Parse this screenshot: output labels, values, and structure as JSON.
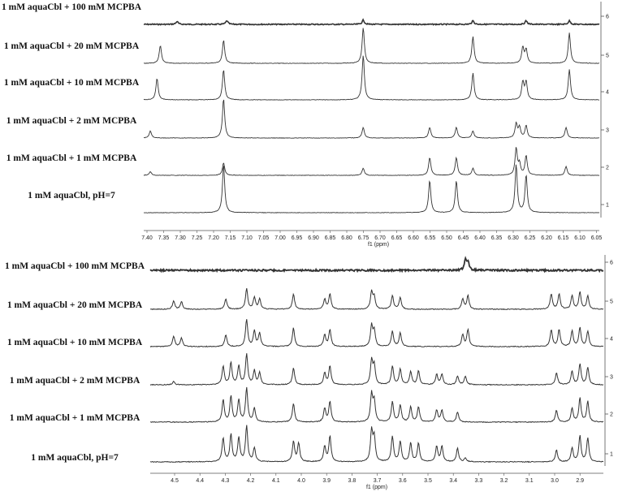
{
  "chart_data": [
    {
      "type": "line",
      "title": "",
      "xlabel": "f1 (ppm)",
      "ylabel": "",
      "xlim": [
        7.4,
        6.03
      ],
      "x_reversed": true,
      "x_ticks": [
        "7.40",
        "7.35",
        "7.30",
        "7.25",
        "7.20",
        "7.15",
        "7.10",
        "7.05",
        "7.00",
        "6.95",
        "6.90",
        "6.85",
        "6.80",
        "6.75",
        "6.70",
        "6.65",
        "6.60",
        "6.55",
        "6.50",
        "6.45",
        "6.40",
        "6.35",
        "6.30",
        "6.25",
        "6.20",
        "6.15",
        "6.10",
        "6.05"
      ],
      "series": [
        {
          "name": "1 mM aquaCbl + 100 mM MCPBA",
          "index": "6",
          "peaks": [
            [
              7.3,
              0.08
            ],
            [
              7.15,
              0.1
            ],
            [
              6.74,
              0.12
            ],
            [
              6.41,
              0.1
            ],
            [
              6.25,
              0.1
            ],
            [
              6.12,
              0.1
            ]
          ]
        },
        {
          "name": "1 mM aquaCbl + 20 mM MCPBA",
          "index": "5",
          "peaks": [
            [
              7.35,
              0.5
            ],
            [
              7.16,
              0.65
            ],
            [
              6.74,
              1.0
            ],
            [
              6.41,
              0.75
            ],
            [
              6.26,
              0.45
            ],
            [
              6.25,
              0.38
            ],
            [
              6.12,
              0.85
            ]
          ]
        },
        {
          "name": "1 mM aquaCbl + 10 mM MCPBA",
          "index": "4",
          "peaks": [
            [
              7.36,
              0.6
            ],
            [
              7.16,
              0.85
            ],
            [
              6.74,
              1.25
            ],
            [
              6.41,
              0.75
            ],
            [
              6.26,
              0.5
            ],
            [
              6.25,
              0.5
            ],
            [
              6.12,
              0.85
            ]
          ]
        },
        {
          "name": "1 mM aquaCbl + 2 mM MCPBA",
          "index": "3",
          "peaks": [
            [
              7.38,
              0.2
            ],
            [
              7.16,
              1.1
            ],
            [
              6.74,
              0.3
            ],
            [
              6.54,
              0.3
            ],
            [
              6.46,
              0.3
            ],
            [
              6.41,
              0.2
            ],
            [
              6.28,
              0.4
            ],
            [
              6.27,
              0.3
            ],
            [
              6.25,
              0.35
            ],
            [
              6.13,
              0.3
            ]
          ]
        },
        {
          "name": "1 mM aquaCbl + 1 mM MCPBA",
          "index": "2",
          "peaks": [
            [
              7.38,
              0.1
            ],
            [
              7.16,
              0.35
            ],
            [
              6.74,
              0.2
            ],
            [
              6.54,
              0.5
            ],
            [
              6.46,
              0.5
            ],
            [
              6.41,
              0.2
            ],
            [
              6.28,
              0.75
            ],
            [
              6.27,
              0.3
            ],
            [
              6.25,
              0.55
            ],
            [
              6.13,
              0.25
            ]
          ]
        },
        {
          "name": "1 mM aquaCbl, pH=7",
          "index": "1",
          "peaks": [
            [
              7.16,
              1.35
            ],
            [
              6.54,
              0.9
            ],
            [
              6.46,
              0.9
            ],
            [
              6.28,
              1.35
            ],
            [
              6.25,
              1.05
            ]
          ]
        }
      ]
    },
    {
      "type": "line",
      "title": "",
      "xlabel": "f1 (ppm)",
      "ylabel": "",
      "xlim": [
        4.58,
        2.84
      ],
      "x_reversed": true,
      "x_ticks": [
        "4.5",
        "4.4",
        "4.3",
        "4.2",
        "4.1",
        "4.0",
        "3.9",
        "3.8",
        "3.7",
        "3.6",
        "3.5",
        "3.4",
        "3.3",
        "3.2",
        "3.1",
        "3.0",
        "2.9"
      ],
      "series": [
        {
          "name": "1 mM aquaCbl + 100 mM MCPBA",
          "index": "6",
          "peaks": [
            [
              3.37,
              0.3
            ],
            [
              3.36,
              0.25
            ]
          ]
        },
        {
          "name": "1 mM aquaCbl + 20 mM MCPBA",
          "index": "5",
          "peaks": [
            [
              4.49,
              0.25
            ],
            [
              4.46,
              0.22
            ],
            [
              4.29,
              0.3
            ],
            [
              4.21,
              0.6
            ],
            [
              4.18,
              0.35
            ],
            [
              4.16,
              0.3
            ],
            [
              4.03,
              0.45
            ],
            [
              3.91,
              0.3
            ],
            [
              3.89,
              0.45
            ],
            [
              3.73,
              0.5
            ],
            [
              3.72,
              0.35
            ],
            [
              3.65,
              0.4
            ],
            [
              3.62,
              0.35
            ],
            [
              3.38,
              0.3
            ],
            [
              3.36,
              0.4
            ],
            [
              3.04,
              0.45
            ],
            [
              3.01,
              0.45
            ],
            [
              2.96,
              0.4
            ],
            [
              2.93,
              0.5
            ],
            [
              2.9,
              0.4
            ]
          ]
        },
        {
          "name": "1 mM aquaCbl + 10 mM MCPBA",
          "index": "4",
          "peaks": [
            [
              4.49,
              0.3
            ],
            [
              4.46,
              0.25
            ],
            [
              4.29,
              0.35
            ],
            [
              4.21,
              0.8
            ],
            [
              4.18,
              0.45
            ],
            [
              4.16,
              0.4
            ],
            [
              4.03,
              0.55
            ],
            [
              3.91,
              0.35
            ],
            [
              3.89,
              0.5
            ],
            [
              3.73,
              0.6
            ],
            [
              3.72,
              0.45
            ],
            [
              3.65,
              0.45
            ],
            [
              3.62,
              0.4
            ],
            [
              3.38,
              0.35
            ],
            [
              3.36,
              0.5
            ],
            [
              3.04,
              0.5
            ],
            [
              3.01,
              0.5
            ],
            [
              2.96,
              0.45
            ],
            [
              2.93,
              0.55
            ],
            [
              2.9,
              0.45
            ]
          ]
        },
        {
          "name": "1 mM aquaCbl + 2 mM MCPBA",
          "index": "3",
          "peaks": [
            [
              4.49,
              0.1
            ],
            [
              4.3,
              0.55
            ],
            [
              4.27,
              0.65
            ],
            [
              4.24,
              0.55
            ],
            [
              4.21,
              0.9
            ],
            [
              4.18,
              0.4
            ],
            [
              4.16,
              0.35
            ],
            [
              4.03,
              0.5
            ],
            [
              3.91,
              0.35
            ],
            [
              3.89,
              0.55
            ],
            [
              3.73,
              0.7
            ],
            [
              3.72,
              0.55
            ],
            [
              3.65,
              0.55
            ],
            [
              3.62,
              0.45
            ],
            [
              3.58,
              0.4
            ],
            [
              3.55,
              0.4
            ],
            [
              3.48,
              0.3
            ],
            [
              3.46,
              0.3
            ],
            [
              3.4,
              0.25
            ],
            [
              3.37,
              0.25
            ],
            [
              3.02,
              0.35
            ],
            [
              2.96,
              0.4
            ],
            [
              2.93,
              0.6
            ],
            [
              2.9,
              0.5
            ]
          ]
        },
        {
          "name": "1 mM aquaCbl + 1 mM MCPBA",
          "index": "2",
          "peaks": [
            [
              4.3,
              0.65
            ],
            [
              4.27,
              0.75
            ],
            [
              4.24,
              0.65
            ],
            [
              4.21,
              1.0
            ],
            [
              4.18,
              0.4
            ],
            [
              4.03,
              0.55
            ],
            [
              3.91,
              0.4
            ],
            [
              3.89,
              0.6
            ],
            [
              3.73,
              0.8
            ],
            [
              3.72,
              0.6
            ],
            [
              3.65,
              0.6
            ],
            [
              3.62,
              0.5
            ],
            [
              3.58,
              0.45
            ],
            [
              3.55,
              0.45
            ],
            [
              3.48,
              0.35
            ],
            [
              3.46,
              0.35
            ],
            [
              3.4,
              0.3
            ],
            [
              3.02,
              0.35
            ],
            [
              2.96,
              0.4
            ],
            [
              2.93,
              0.7
            ],
            [
              2.9,
              0.6
            ]
          ]
        },
        {
          "name": "1 mM aquaCbl, pH=7",
          "index": "1",
          "peaks": [
            [
              4.3,
              0.7
            ],
            [
              4.27,
              0.8
            ],
            [
              4.24,
              0.7
            ],
            [
              4.21,
              1.05
            ],
            [
              4.18,
              0.4
            ],
            [
              4.03,
              0.6
            ],
            [
              4.01,
              0.55
            ],
            [
              3.91,
              0.45
            ],
            [
              3.89,
              0.75
            ],
            [
              3.73,
              0.9
            ],
            [
              3.72,
              0.7
            ],
            [
              3.65,
              0.75
            ],
            [
              3.62,
              0.6
            ],
            [
              3.58,
              0.55
            ],
            [
              3.55,
              0.55
            ],
            [
              3.48,
              0.45
            ],
            [
              3.46,
              0.45
            ],
            [
              3.4,
              0.4
            ],
            [
              3.37,
              0.1
            ],
            [
              3.02,
              0.35
            ],
            [
              2.96,
              0.4
            ],
            [
              2.93,
              0.75
            ],
            [
              2.9,
              0.7
            ]
          ]
        }
      ]
    }
  ]
}
